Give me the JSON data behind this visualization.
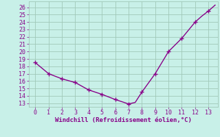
{
  "x": [
    0,
    1,
    2,
    3,
    4,
    5,
    6,
    7,
    7.5,
    8,
    9,
    10,
    11,
    12,
    12.5,
    13,
    13.5
  ],
  "y": [
    18.5,
    17.0,
    16.3,
    15.8,
    14.8,
    14.2,
    13.5,
    12.9,
    13.1,
    14.5,
    17.0,
    20.0,
    21.8,
    24.0,
    24.8,
    25.5,
    26.3
  ],
  "line_color": "#880088",
  "marker_x": [
    0,
    1,
    2,
    3,
    4,
    5,
    6,
    7,
    8,
    9,
    10,
    11,
    12,
    13
  ],
  "marker_y": [
    18.5,
    17.0,
    16.3,
    15.8,
    14.8,
    14.2,
    13.5,
    12.9,
    14.5,
    17.0,
    20.0,
    21.8,
    24.0,
    25.5
  ],
  "xlim": [
    -0.5,
    13.7
  ],
  "ylim": [
    12.5,
    26.8
  ],
  "xticks": [
    0,
    1,
    2,
    3,
    4,
    5,
    6,
    7,
    8,
    9,
    10,
    11,
    12,
    13
  ],
  "yticks": [
    13,
    14,
    15,
    16,
    17,
    18,
    19,
    20,
    21,
    22,
    23,
    24,
    25,
    26
  ],
  "xlabel": "Windchill (Refroidissement éolien,°C)",
  "background_color": "#c8f0e8",
  "grid_color": "#a0c8b8",
  "tick_color": "#880088",
  "label_color": "#880088",
  "line_width": 1.0,
  "marker_size": 3
}
